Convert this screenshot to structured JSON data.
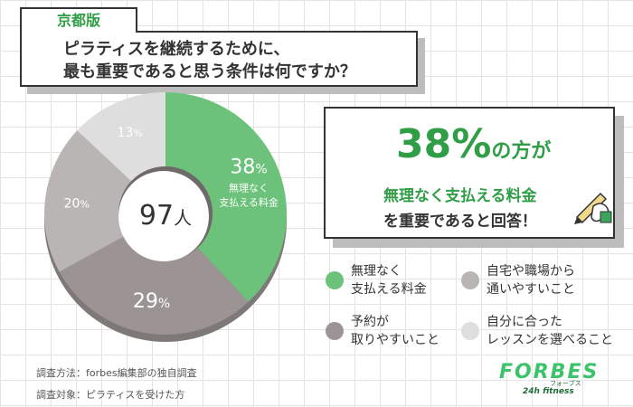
{
  "region_tab": "京都版",
  "question": {
    "line1": "ピラティスを継続するために、",
    "line2": "最も重要であると思う条件は何ですか？"
  },
  "highlight": {
    "percent": "38%",
    "suffix": "の方が",
    "line2": "無理なく支払える料金",
    "line3": "を重要であると回答！"
  },
  "chart_data": {
    "type": "pie",
    "donut": true,
    "total_label": "97人",
    "categories": [
      "無理なく支払える料金",
      "予約が取りやすいこと",
      "自宅や職場から通いやすいこと",
      "自分に合ったレッスンを選べること"
    ],
    "values": [
      38,
      29,
      20,
      13
    ],
    "unit": "%",
    "colors": [
      "#6cc27a",
      "#9c9494",
      "#bab5b5",
      "#dedede"
    ],
    "slice_labels": [
      {
        "value": "38",
        "unit": "%",
        "sub": [
          "無理なく",
          "支払える料金"
        ]
      },
      {
        "value": "29",
        "unit": "%",
        "sub": []
      },
      {
        "value": "20",
        "unit": "%",
        "sub": []
      },
      {
        "value": "13",
        "unit": "%",
        "sub": []
      }
    ],
    "legend": [
      {
        "lines": [
          "無理なく",
          "支払える料金"
        ],
        "color": "#6cc27a"
      },
      {
        "lines": [
          "自宅や職場から",
          "通いやすいこと"
        ],
        "color": "#bab5b5"
      },
      {
        "lines": [
          "予約が",
          "取りやすいこと"
        ],
        "color": "#9c9494"
      },
      {
        "lines": [
          "自分に合った",
          "レッスンを選べること"
        ],
        "color": "#dedede"
      }
    ]
  },
  "footnotes": {
    "method": "調査方法：forbes編集部の独自調査",
    "target": "調査対象：ピラティスを受けた方"
  },
  "logo": {
    "main": "FORBES",
    "kana": "フォーブス",
    "sub": "24h fitness",
    "color": "#3cc36b",
    "dark": "#1d6b34"
  }
}
